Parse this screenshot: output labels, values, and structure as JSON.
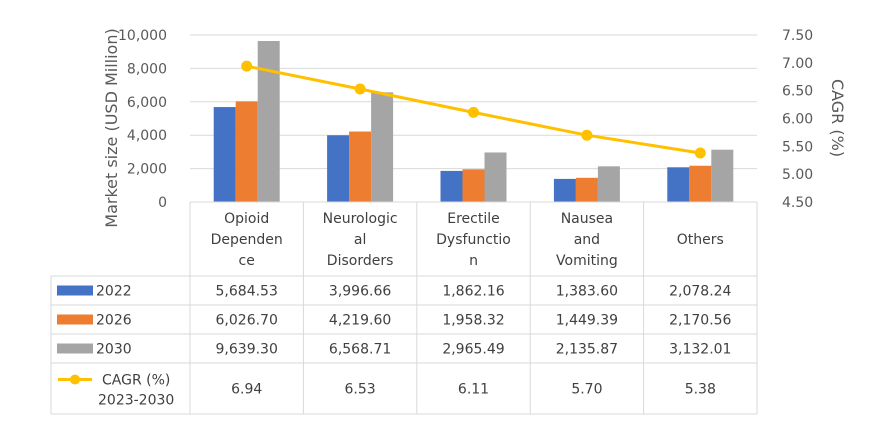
{
  "chart_data": {
    "type": "bar",
    "categories": [
      [
        "Opioid",
        "Dependen",
        "ce"
      ],
      [
        "Neurologic",
        "al",
        "Disorders"
      ],
      [
        "Erectile",
        "Dysfunctio",
        "n"
      ],
      [
        "Nausea",
        "and",
        "Vomiting"
      ],
      [
        "Others"
      ]
    ],
    "series": [
      {
        "name": "2022",
        "color": "#4472C4",
        "values": [
          5684.53,
          3996.66,
          1862.16,
          1383.6,
          2078.24
        ],
        "labels": [
          "5,684.53",
          "3,996.66",
          "1,862.16",
          "1,383.60",
          "2,078.24"
        ]
      },
      {
        "name": "2026",
        "color": "#ED7D31",
        "values": [
          6026.7,
          4219.6,
          1958.32,
          1449.39,
          2170.56
        ],
        "labels": [
          "6,026.70",
          "4,219.60",
          "1,958.32",
          "1,449.39",
          "2,170.56"
        ]
      },
      {
        "name": "2030",
        "color": "#A5A5A5",
        "values": [
          9639.3,
          6568.71,
          2965.49,
          2135.87,
          3132.01
        ],
        "labels": [
          "9,639.30",
          "6,568.71",
          "2,965.49",
          "2,135.87",
          "3,132.01"
        ]
      }
    ],
    "line_series": {
      "name": [
        "CAGR (%)",
        "2023-2030"
      ],
      "color": "#FFC000",
      "values": [
        6.94,
        6.53,
        6.11,
        5.7,
        5.38
      ],
      "labels": [
        "6.94",
        "6.53",
        "6.11",
        "5.70",
        "5.38"
      ]
    },
    "ylabel": "Market size (USD Million)",
    "y2label": "CAGR (%)",
    "ylim": [
      0,
      10000
    ],
    "y2lim": [
      4.5,
      7.5
    ],
    "yticks": [
      "0",
      "2,000",
      "4,000",
      "6,000",
      "8,000",
      "10,000"
    ],
    "y2ticks": [
      "4.50",
      "5.00",
      "5.50",
      "6.00",
      "6.50",
      "7.00",
      "7.50"
    ],
    "grid": true,
    "legend": "data-table"
  }
}
